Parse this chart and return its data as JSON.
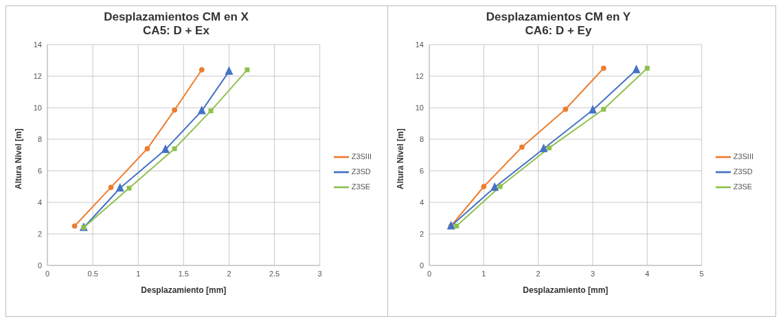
{
  "chart_data": [
    {
      "type": "line",
      "title": "Desplazamientos  CM en X",
      "subtitle": "CA5: D + Ex",
      "xlabel": "Desplazamiento [mm]",
      "ylabel": "Altura Nivel [m]",
      "xlim": [
        0,
        3
      ],
      "xticks": [
        0,
        0.5,
        1,
        1.5,
        2,
        2.5,
        3
      ],
      "ylim": [
        0,
        14
      ],
      "yticks": [
        0,
        2,
        4,
        6,
        8,
        10,
        12,
        14
      ],
      "grid": true,
      "legend": "right",
      "series": [
        {
          "name": "Z3SIII",
          "color": "#ed7d31",
          "marker": "circle",
          "x": [
            0.3,
            0.7,
            1.1,
            1.4,
            1.7
          ],
          "values": [
            2.5,
            4.95,
            7.4,
            9.85,
            12.4
          ]
        },
        {
          "name": "Z3SD",
          "color": "#4472c4",
          "marker": "triangle",
          "x": [
            0.4,
            0.8,
            1.3,
            1.7,
            2.0
          ],
          "values": [
            2.4,
            4.9,
            7.35,
            9.8,
            12.3
          ]
        },
        {
          "name": "Z3SE",
          "color": "#8fc04f",
          "marker": "square",
          "x": [
            0.4,
            0.9,
            1.4,
            1.8,
            2.2
          ],
          "values": [
            2.4,
            4.9,
            7.4,
            9.8,
            12.4
          ]
        }
      ]
    },
    {
      "type": "line",
      "title": "Desplazamientos  CM en Y",
      "subtitle": "CA6: D + Ey",
      "xlabel": "Desplazamiento [mm]",
      "ylabel": "Altura Nivel [m]",
      "xlim": [
        0,
        5
      ],
      "xticks": [
        0,
        1,
        2,
        3,
        4,
        5
      ],
      "ylim": [
        0,
        14
      ],
      "yticks": [
        0,
        2,
        4,
        6,
        8,
        10,
        12,
        14
      ],
      "grid": true,
      "legend": "right",
      "series": [
        {
          "name": "Z3SIII",
          "color": "#ed7d31",
          "marker": "circle",
          "x": [
            0.4,
            1.0,
            1.7,
            2.5,
            3.2
          ],
          "values": [
            2.5,
            5.0,
            7.5,
            9.9,
            12.5
          ]
        },
        {
          "name": "Z3SD",
          "color": "#4472c4",
          "marker": "triangle",
          "x": [
            0.4,
            1.2,
            2.1,
            3.0,
            3.8
          ],
          "values": [
            2.5,
            4.95,
            7.4,
            9.85,
            12.4
          ]
        },
        {
          "name": "Z3SE",
          "color": "#8fc04f",
          "marker": "square",
          "x": [
            0.5,
            1.3,
            2.2,
            3.2,
            4.0
          ],
          "values": [
            2.5,
            5.0,
            7.45,
            9.9,
            12.5
          ]
        }
      ]
    }
  ]
}
